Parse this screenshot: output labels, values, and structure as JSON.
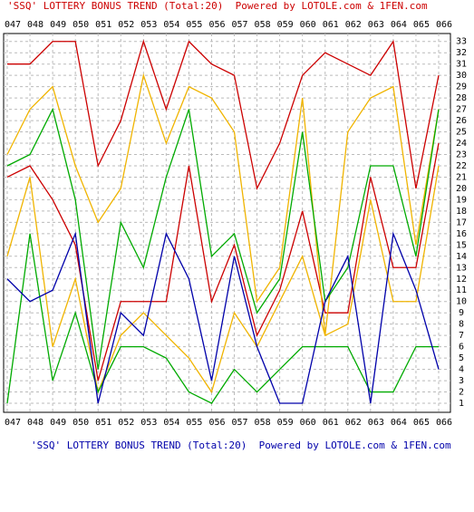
{
  "chart_data": {
    "type": "line",
    "title": "'SSQ' LOTTERY BONUS TREND (Total:20)  Powered by LOTOLE.com & 1FEN.com",
    "footnote": "'SSQ' LOTTERY BONUS TREND (Total:20)  Powered by LOTOLE.com & 1FEN.com",
    "categories": [
      "047",
      "048",
      "049",
      "050",
      "051",
      "052",
      "053",
      "054",
      "055",
      "056",
      "057",
      "058",
      "059",
      "060",
      "061",
      "062",
      "063",
      "064",
      "065",
      "066"
    ],
    "ylim": [
      0.2,
      33.7
    ],
    "yticks": [
      1,
      2,
      3,
      4,
      5,
      6,
      7,
      8,
      9,
      10,
      11,
      12,
      13,
      14,
      15,
      16,
      17,
      18,
      19,
      20,
      21,
      22,
      23,
      24,
      25,
      26,
      27,
      28,
      29,
      30,
      31,
      32,
      33
    ],
    "grid": true,
    "series": [
      {
        "color": "#cc0000",
        "values": [
          31,
          31,
          33,
          33,
          22,
          26,
          33,
          27,
          33,
          31,
          30,
          20,
          24,
          30,
          32,
          31,
          30,
          33,
          20,
          30
        ]
      },
      {
        "color": "#cc0000",
        "values": [
          21,
          22,
          19,
          15,
          3,
          10,
          10,
          10,
          22,
          10,
          15,
          7,
          11,
          18,
          9,
          9,
          21,
          13,
          13,
          24
        ]
      },
      {
        "color": "#f0b400",
        "values": [
          23,
          27,
          29,
          22,
          17,
          20,
          30,
          24,
          29,
          28,
          25,
          10,
          13,
          28,
          7,
          25,
          28,
          29,
          15,
          27
        ]
      },
      {
        "color": "#f0b400",
        "values": [
          14,
          21,
          6,
          12,
          2,
          7,
          9,
          7,
          5,
          2,
          9,
          6,
          10,
          14,
          7,
          8,
          19,
          10,
          10,
          22
        ]
      },
      {
        "color": "#00aa00",
        "values": [
          22,
          23,
          27,
          19,
          4,
          17,
          13,
          21,
          27,
          14,
          16,
          9,
          12,
          25,
          10,
          13,
          22,
          22,
          14,
          27
        ]
      },
      {
        "color": "#00aa00",
        "values": [
          1,
          16,
          3,
          9,
          2,
          6,
          6,
          5,
          2,
          1,
          4,
          2,
          4,
          6,
          6,
          6,
          2,
          2,
          6,
          6
        ]
      },
      {
        "color": "#0000aa",
        "values": [
          12,
          10,
          11,
          16,
          1,
          9,
          7,
          16,
          12,
          3,
          14,
          6,
          1,
          1,
          10,
          14,
          1,
          16,
          11,
          4
        ]
      }
    ]
  }
}
